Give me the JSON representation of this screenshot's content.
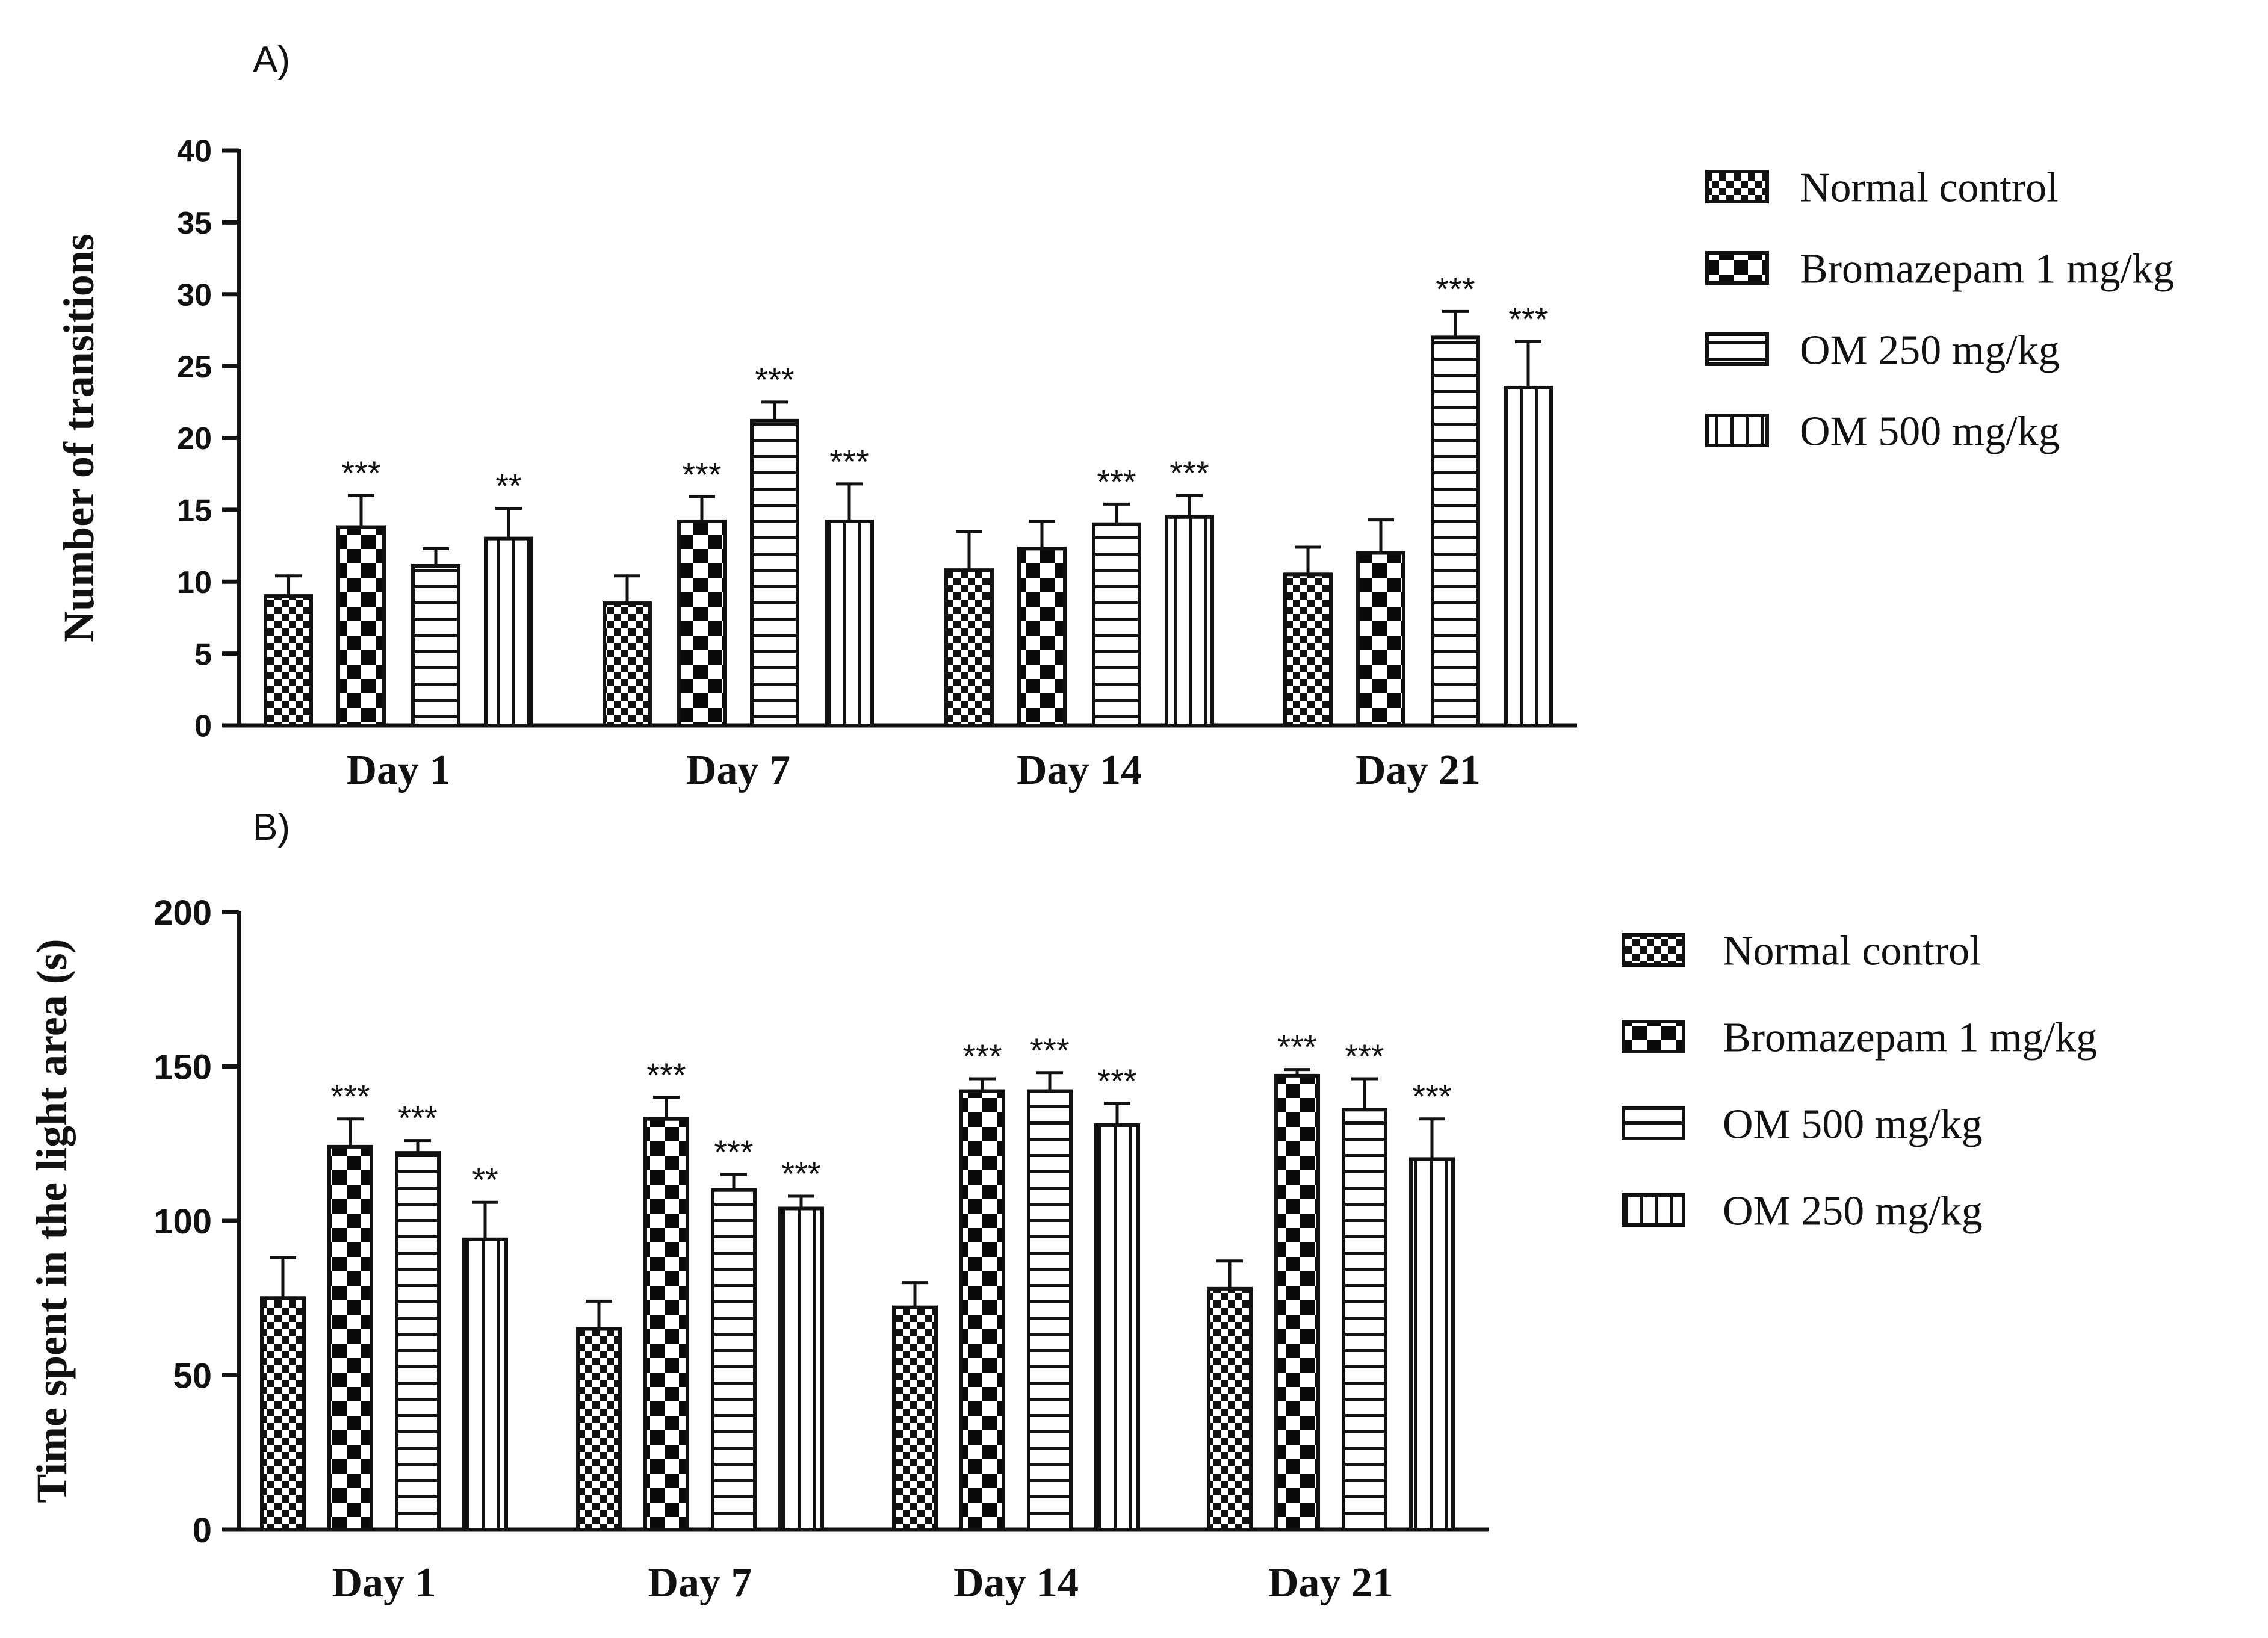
{
  "chart_data": [
    {
      "panel_label": "A)",
      "type": "bar",
      "ylabel": "Number of transitions",
      "xlabel": "",
      "ylim": [
        0,
        40
      ],
      "yticks": [
        "0",
        "5",
        "10",
        "15",
        "20",
        "25",
        "30",
        "35",
        "40"
      ],
      "categories": [
        "Day 1",
        "Day 7",
        "Day 14",
        "Day 21"
      ],
      "legend_position": "right",
      "series": [
        {
          "name": "Normal control",
          "pattern": "checker-small",
          "values": [
            9.0,
            8.5,
            10.8,
            10.5
          ],
          "errors": [
            1.4,
            1.9,
            2.7,
            1.9
          ],
          "annotations": [
            "",
            "",
            "",
            ""
          ]
        },
        {
          "name": "Bromazepam 1 mg/kg",
          "pattern": "checker-large",
          "values": [
            13.8,
            14.2,
            12.3,
            12.0
          ],
          "errors": [
            2.2,
            1.7,
            1.9,
            2.3
          ],
          "annotations": [
            "***",
            "***",
            "",
            ""
          ]
        },
        {
          "name": "OM 250 mg/kg",
          "pattern": "hlines",
          "values": [
            11.1,
            21.2,
            14.0,
            27.0
          ],
          "errors": [
            1.2,
            1.3,
            1.4,
            1.8
          ],
          "annotations": [
            "",
            "***",
            "***",
            "***"
          ]
        },
        {
          "name": "OM 500 mg/kg",
          "pattern": "vlines",
          "values": [
            13.0,
            14.2,
            14.5,
            23.5
          ],
          "errors": [
            2.1,
            2.6,
            1.5,
            3.2
          ],
          "annotations": [
            "**",
            "***",
            "***",
            "***"
          ]
        }
      ]
    },
    {
      "panel_label": "B)",
      "type": "bar",
      "ylabel": "Time spent in the light area (s)",
      "xlabel": "",
      "ylim": [
        0,
        200
      ],
      "yticks": [
        "0",
        "50",
        "100",
        "150",
        "200"
      ],
      "categories": [
        "Day 1",
        "Day 7",
        "Day 14",
        "Day 21"
      ],
      "legend_position": "right",
      "series": [
        {
          "name": "Normal control",
          "pattern": "checker-small",
          "values": [
            75,
            65,
            72,
            78
          ],
          "errors": [
            13,
            9,
            8,
            9
          ],
          "annotations": [
            "",
            "",
            "",
            ""
          ]
        },
        {
          "name": "Bromazepam 1 mg/kg",
          "pattern": "checker-large",
          "values": [
            124,
            133,
            142,
            147
          ],
          "errors": [
            9,
            7,
            4,
            2
          ],
          "annotations": [
            "***",
            "***",
            "***",
            "***"
          ]
        },
        {
          "name": "OM 500 mg/kg",
          "pattern": "hlines",
          "values": [
            122,
            110,
            142,
            136
          ],
          "errors": [
            4,
            5,
            6,
            10
          ],
          "annotations": [
            "***",
            "***",
            "***",
            "***"
          ]
        },
        {
          "name": "OM 250 mg/kg",
          "pattern": "vlines",
          "values": [
            94,
            104,
            131,
            120
          ],
          "errors": [
            12,
            4,
            7,
            13
          ],
          "annotations": [
            "**",
            "***",
            "***",
            "***"
          ]
        }
      ]
    }
  ]
}
